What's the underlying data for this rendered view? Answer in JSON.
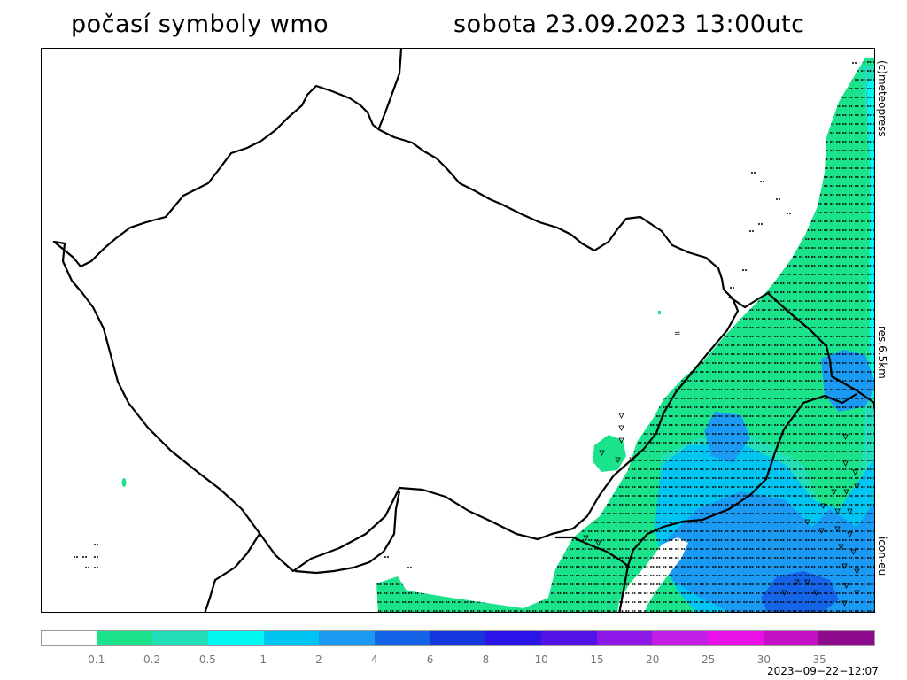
{
  "header": {
    "title_left": "počasí symboly wmo",
    "title_right": "sobota 23.09.2023 13:00utc"
  },
  "side_labels": {
    "copyright": "(c)meteopress",
    "resolution": "res.6.5km",
    "model": "icon-eu"
  },
  "legend": {
    "colors": [
      "#ffffff",
      "#1be38c",
      "#22dfba",
      "#00f8f0",
      "#00c5f2",
      "#1a9af2",
      "#1564e8",
      "#1436dc",
      "#2a14e8",
      "#5212e8",
      "#8d18e8",
      "#c21ee6",
      "#e812e8",
      "#c40fc4",
      "#8c0a8c"
    ],
    "labels": [
      "0.1",
      "0.2",
      "0.5",
      "1",
      "2",
      "4",
      "6",
      "8",
      "10",
      "15",
      "20",
      "25",
      "30",
      "35"
    ]
  },
  "footer": {
    "timestamp": "2023−09−22−12:07"
  }
}
